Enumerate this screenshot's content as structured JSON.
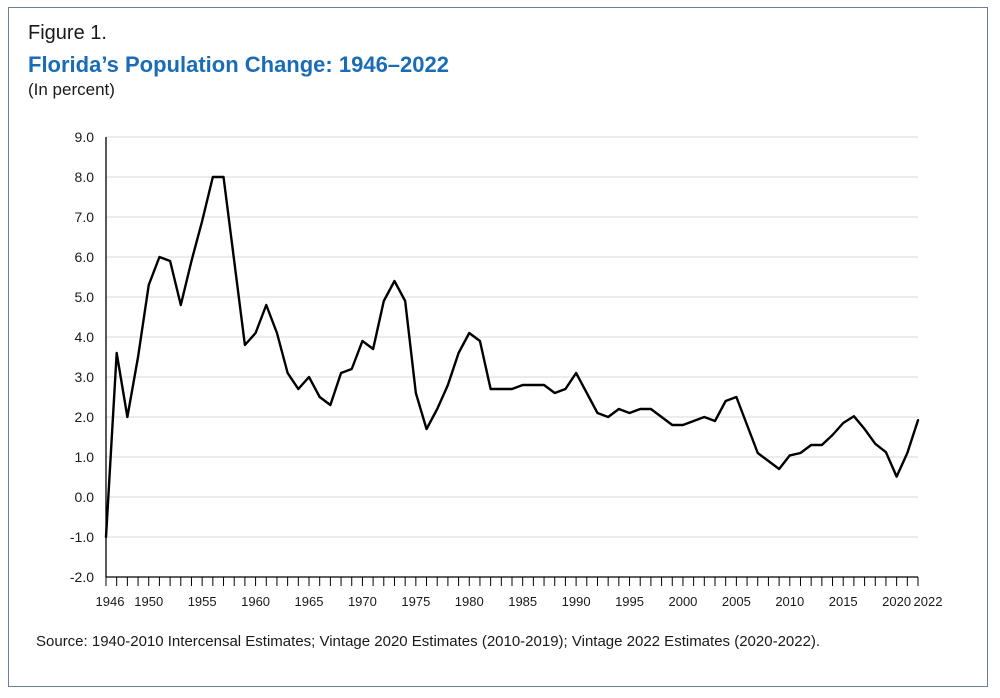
{
  "figure": {
    "label": "Figure 1.",
    "title": "Florida’s Population Change: 1946–2022",
    "subtitle": "(In percent)",
    "source": "Source: 1940-2010 Intercensal Estimates; Vintage 2020 Estimates (2010-2019); Vintage 2022 Estimates (2020-2022)."
  },
  "colors": {
    "title": "#1a6db5",
    "line": "#000000",
    "grid": "#d9d9d9",
    "frame": "#6b7f99"
  },
  "chart_data": {
    "type": "line",
    "title": "Florida’s Population Change: 1946–2022",
    "ylabel": "(In percent)",
    "xlabel": "",
    "ylim": [
      -2.0,
      9.0
    ],
    "xlim": [
      1946,
      2022
    ],
    "grid": true,
    "y_ticks": [
      "9.0",
      "8.0",
      "7.0",
      "6.0",
      "5.0",
      "4.0",
      "3.0",
      "2.0",
      "1.0",
      "0.0",
      "-1.0",
      "-2.0"
    ],
    "x_ticks": [
      "1946",
      "1950",
      "1955",
      "1960",
      "1965",
      "1970",
      "1975",
      "1980",
      "1985",
      "1990",
      "1995",
      "2000",
      "2005",
      "2010",
      "2015",
      "2020",
      "2022"
    ],
    "series": [
      {
        "x": [
          1946,
          1947,
          1948,
          1949,
          1950,
          1951,
          1952,
          1953,
          1954,
          1955,
          1956,
          1957,
          1958,
          1959,
          1960,
          1961,
          1962,
          1963,
          1964,
          1965,
          1966,
          1967,
          1968,
          1969,
          1970,
          1971,
          1972,
          1973,
          1974,
          1975,
          1976,
          1977,
          1978,
          1979,
          1980,
          1981,
          1982,
          1983,
          1984,
          1985,
          1986,
          1987,
          1988,
          1989,
          1990,
          1991,
          1992,
          1993,
          1994,
          1995,
          1996,
          1997,
          1998,
          1999,
          2000,
          2001,
          2002,
          2003,
          2004,
          2005,
          2006,
          2007,
          2008,
          2009,
          2010,
          2011,
          2012,
          2013,
          2014,
          2015,
          2016,
          2017,
          2018,
          2019,
          2020,
          2021,
          2022
        ],
        "values": [
          -1.0,
          3.6,
          2.0,
          3.5,
          5.3,
          6.0,
          5.9,
          4.8,
          5.9,
          6.9,
          8.0,
          8.0,
          5.9,
          3.8,
          4.1,
          4.8,
          4.1,
          3.1,
          2.7,
          3.0,
          2.5,
          2.3,
          3.1,
          3.2,
          3.9,
          3.7,
          4.9,
          5.4,
          4.9,
          2.6,
          1.7,
          2.2,
          2.8,
          3.6,
          4.1,
          3.9,
          2.7,
          2.7,
          2.7,
          2.8,
          2.8,
          2.8,
          2.6,
          2.7,
          3.1,
          2.6,
          2.1,
          2.0,
          2.2,
          2.1,
          2.2,
          2.2,
          2.0,
          1.8,
          1.8,
          1.9,
          2.0,
          1.9,
          2.4,
          2.5,
          1.8,
          1.1,
          0.9,
          0.7,
          1.04,
          1.1,
          1.3,
          1.3,
          1.55,
          1.85,
          2.02,
          1.7,
          1.33,
          1.12,
          0.51,
          1.1,
          1.92
        ]
      }
    ]
  }
}
